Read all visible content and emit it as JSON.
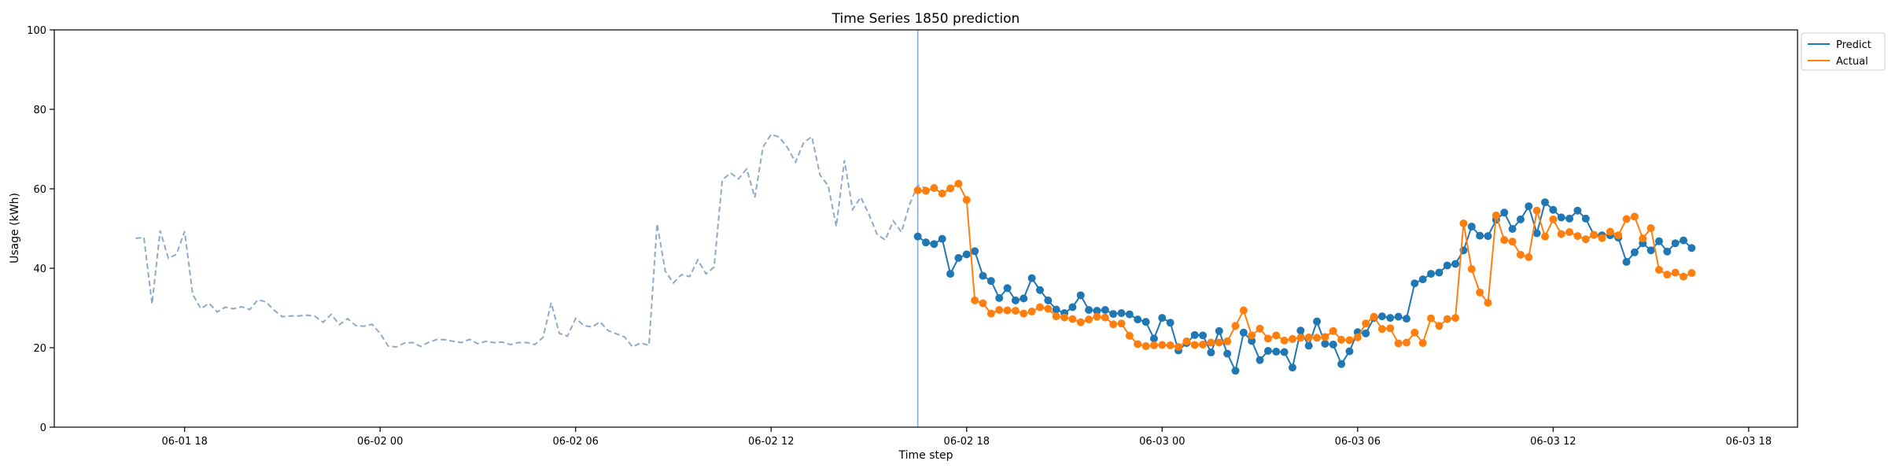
{
  "chart_data": {
    "type": "line",
    "title": "Time Series 1850 prediction",
    "xlabel": "Time step",
    "ylabel": "Usage (kWh)",
    "ylim": [
      0,
      100
    ],
    "yticks": [
      0,
      20,
      40,
      60,
      80,
      100
    ],
    "xlim": [
      "2025-06-01 14:00",
      "2025-06-03 19:30"
    ],
    "xticks": [
      "06-01 18",
      "06-02 00",
      "06-02 06",
      "06-02 12",
      "06-02 18",
      "06-03 00",
      "06-03 06",
      "06-03 12",
      "06-03 18"
    ],
    "xtick_values": [
      "2025-06-01 18:00",
      "2025-06-02 00:00",
      "2025-06-02 06:00",
      "2025-06-02 12:00",
      "2025-06-02 18:00",
      "2025-06-03 00:00",
      "2025-06-03 06:00",
      "2025-06-03 12:00",
      "2025-06-03 18:00"
    ],
    "grid": false,
    "legend": "upper-right-outside",
    "forecast_start": "2025-06-02 16:30",
    "history": {
      "color": "#8fa9c9",
      "style": "dashed",
      "start": "2025-06-01 16:30",
      "step_minutes": 15,
      "values": [
        47.5,
        47.8,
        31.0,
        49.5,
        42.5,
        43.5,
        49.3,
        33.4,
        29.8,
        31.2,
        29.0,
        30.2,
        29.8,
        30.3,
        29.6,
        32.1,
        31.5,
        29.4,
        27.8,
        28.0,
        28.0,
        28.2,
        27.9,
        26.4,
        28.4,
        25.8,
        27.3,
        25.6,
        25.4,
        25.9,
        23.6,
        20.4,
        20.2,
        21.2,
        21.3,
        20.3,
        21.4,
        22.1,
        22.0,
        21.6,
        21.3,
        22.1,
        21.0,
        21.6,
        21.3,
        21.4,
        20.8,
        21.3,
        21.3,
        20.8,
        22.6,
        31.3,
        23.6,
        22.9,
        27.4,
        25.6,
        25.2,
        26.5,
        24.3,
        23.5,
        22.7,
        20.2,
        21.2,
        20.6,
        51.2,
        39.3,
        36.3,
        38.4,
        37.9,
        42.1,
        38.6,
        40.3,
        62.2,
        64.0,
        62.5,
        65.0,
        57.8,
        70.5,
        73.7,
        73.0,
        70.4,
        66.7,
        71.7,
        73.1,
        63.5,
        60.8,
        50.5,
        67.2,
        54.8,
        57.9,
        53.6,
        48.6,
        47.1,
        51.9,
        49.1,
        56.1,
        60.9,
        60.2
      ]
    },
    "series": [
      {
        "name": "Predict",
        "color": "#1f77b4",
        "start": "2025-06-02 16:30",
        "step_minutes": 15,
        "values": [
          48.0,
          46.5,
          46.1,
          47.4,
          38.6,
          42.6,
          43.5,
          44.3,
          38.1,
          36.8,
          32.5,
          35.0,
          31.9,
          32.4,
          37.5,
          34.5,
          31.9,
          29.6,
          28.7,
          30.2,
          33.2,
          29.5,
          29.3,
          29.5,
          28.5,
          28.7,
          28.4,
          27.1,
          26.5,
          22.3,
          27.5,
          26.3,
          19.3,
          21.2,
          23.2,
          23.1,
          18.8,
          24.2,
          18.5,
          14.2,
          23.8,
          21.7,
          16.9,
          19.2,
          19.0,
          18.9,
          15.0,
          24.3,
          20.5,
          26.6,
          21.0,
          20.8,
          15.9,
          19.1,
          23.9,
          23.6,
          27.5,
          27.9,
          27.5,
          27.8,
          27.3,
          36.2,
          37.2,
          38.6,
          38.9,
          40.7,
          41.1,
          44.5,
          50.5,
          48.2,
          48.1,
          52.2,
          54.0,
          49.9,
          52.3,
          55.6,
          48.8,
          56.6,
          54.7,
          52.8,
          52.5,
          54.5,
          52.5,
          48.4,
          48.3,
          48.3,
          47.7,
          41.6,
          44.0,
          46.3,
          44.5,
          46.8,
          44.2,
          46.3,
          47.0,
          45.1
        ]
      },
      {
        "name": "Actual",
        "color": "#ff7f0e",
        "start": "2025-06-02 16:30",
        "step_minutes": 15,
        "values": [
          59.6,
          59.5,
          60.2,
          58.8,
          60.1,
          61.3,
          57.2,
          31.9,
          31.2,
          28.6,
          29.5,
          29.4,
          29.3,
          28.6,
          29.1,
          30.2,
          29.8,
          27.9,
          27.6,
          27.2,
          26.4,
          27.1,
          27.8,
          27.6,
          25.9,
          26.1,
          23.0,
          20.9,
          20.4,
          20.6,
          20.7,
          20.6,
          20.2,
          21.6,
          20.7,
          20.8,
          21.3,
          21.3,
          21.6,
          25.5,
          29.4,
          23.1,
          24.8,
          22.3,
          23.1,
          21.8,
          22.2,
          22.5,
          22.6,
          22.5,
          22.7,
          24.2,
          22.0,
          21.9,
          22.6,
          26.1,
          27.8,
          24.7,
          24.9,
          21.1,
          21.3,
          23.8,
          21.2,
          27.4,
          25.5,
          27.2,
          27.5,
          51.3,
          39.8,
          33.9,
          31.3,
          53.3,
          47.1,
          46.7,
          43.4,
          42.8,
          54.5,
          48.0,
          52.3,
          48.6,
          49.1,
          48.1,
          47.3,
          48.4,
          47.6,
          49.2,
          48.3,
          52.4,
          53.0,
          47.5,
          50.1,
          39.6,
          38.4,
          38.9,
          37.9,
          38.8
        ]
      }
    ]
  }
}
